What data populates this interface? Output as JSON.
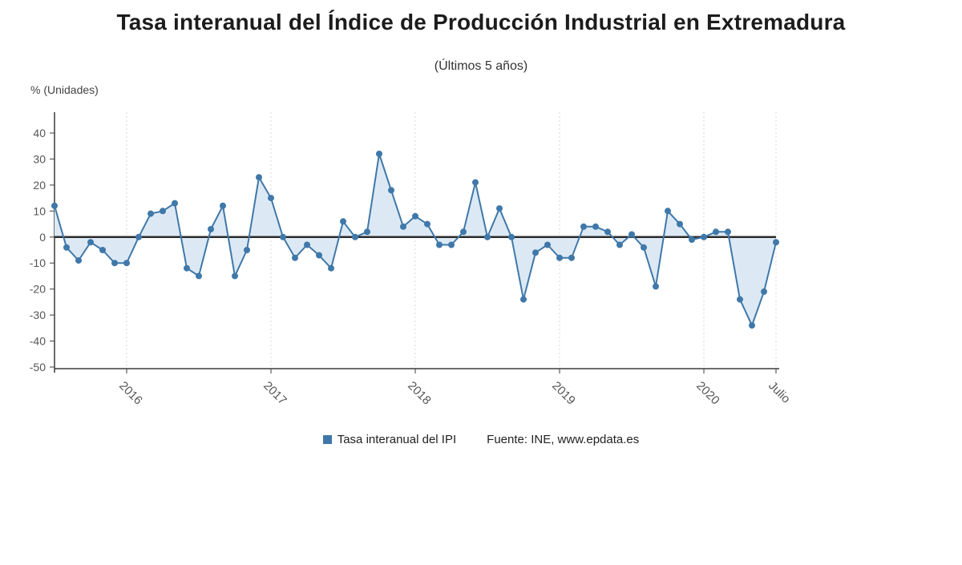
{
  "title": "Tasa interanual del Índice de Producción Industrial en Extremadura",
  "subtitle": "(Últimos 5 años)",
  "y_axis_unit_label": "% (Unidades)",
  "legend": {
    "series_label": "Tasa interanual del IPI",
    "source": "Fuente: INE, www.epdata.es"
  },
  "colors": {
    "series": "#3f78a9",
    "fill": "#dce9f4",
    "grid": "#d8d8d8",
    "axis": "#3c3c3c",
    "zero_line": "#2b2b2b",
    "tick_text": "#555555"
  },
  "chart_data": {
    "type": "line",
    "title": "Tasa interanual del Índice de Producción Industrial en Extremadura",
    "subtitle": "(Últimos 5 años)",
    "ylabel": "% (Unidades)",
    "xlabel": "",
    "ylim": [
      -50,
      40
    ],
    "yticks": [
      40,
      30,
      20,
      10,
      0,
      -10,
      -20,
      -30,
      -40,
      -50
    ],
    "grid": "vertical-dotted",
    "legend_position": "bottom",
    "markers": true,
    "fill_to_zero": true,
    "x_start": "2015-07",
    "x_end": "2020-07",
    "x_tick_labels": [
      "2016",
      "2017",
      "2018",
      "2019",
      "2020",
      "Julio"
    ],
    "x_tick_month_index": [
      6,
      18,
      30,
      42,
      54,
      60
    ],
    "series_name": "Tasa interanual del IPI",
    "values": [
      12,
      -4,
      -9,
      -2,
      -5,
      -10,
      -10,
      0,
      9,
      10,
      13,
      -12,
      -15,
      3,
      12,
      -15,
      -5,
      23,
      15,
      0,
      -8,
      -3,
      -7,
      -12,
      6,
      0,
      2,
      32,
      18,
      4,
      8,
      5,
      -3,
      -3,
      2,
      21,
      0,
      11,
      0,
      -24,
      -6,
      -3,
      -8,
      -8,
      4,
      4,
      2,
      -3,
      1,
      -4,
      -19,
      10,
      5,
      -1,
      0,
      2,
      2,
      -24,
      -34,
      -21,
      -2
    ]
  }
}
